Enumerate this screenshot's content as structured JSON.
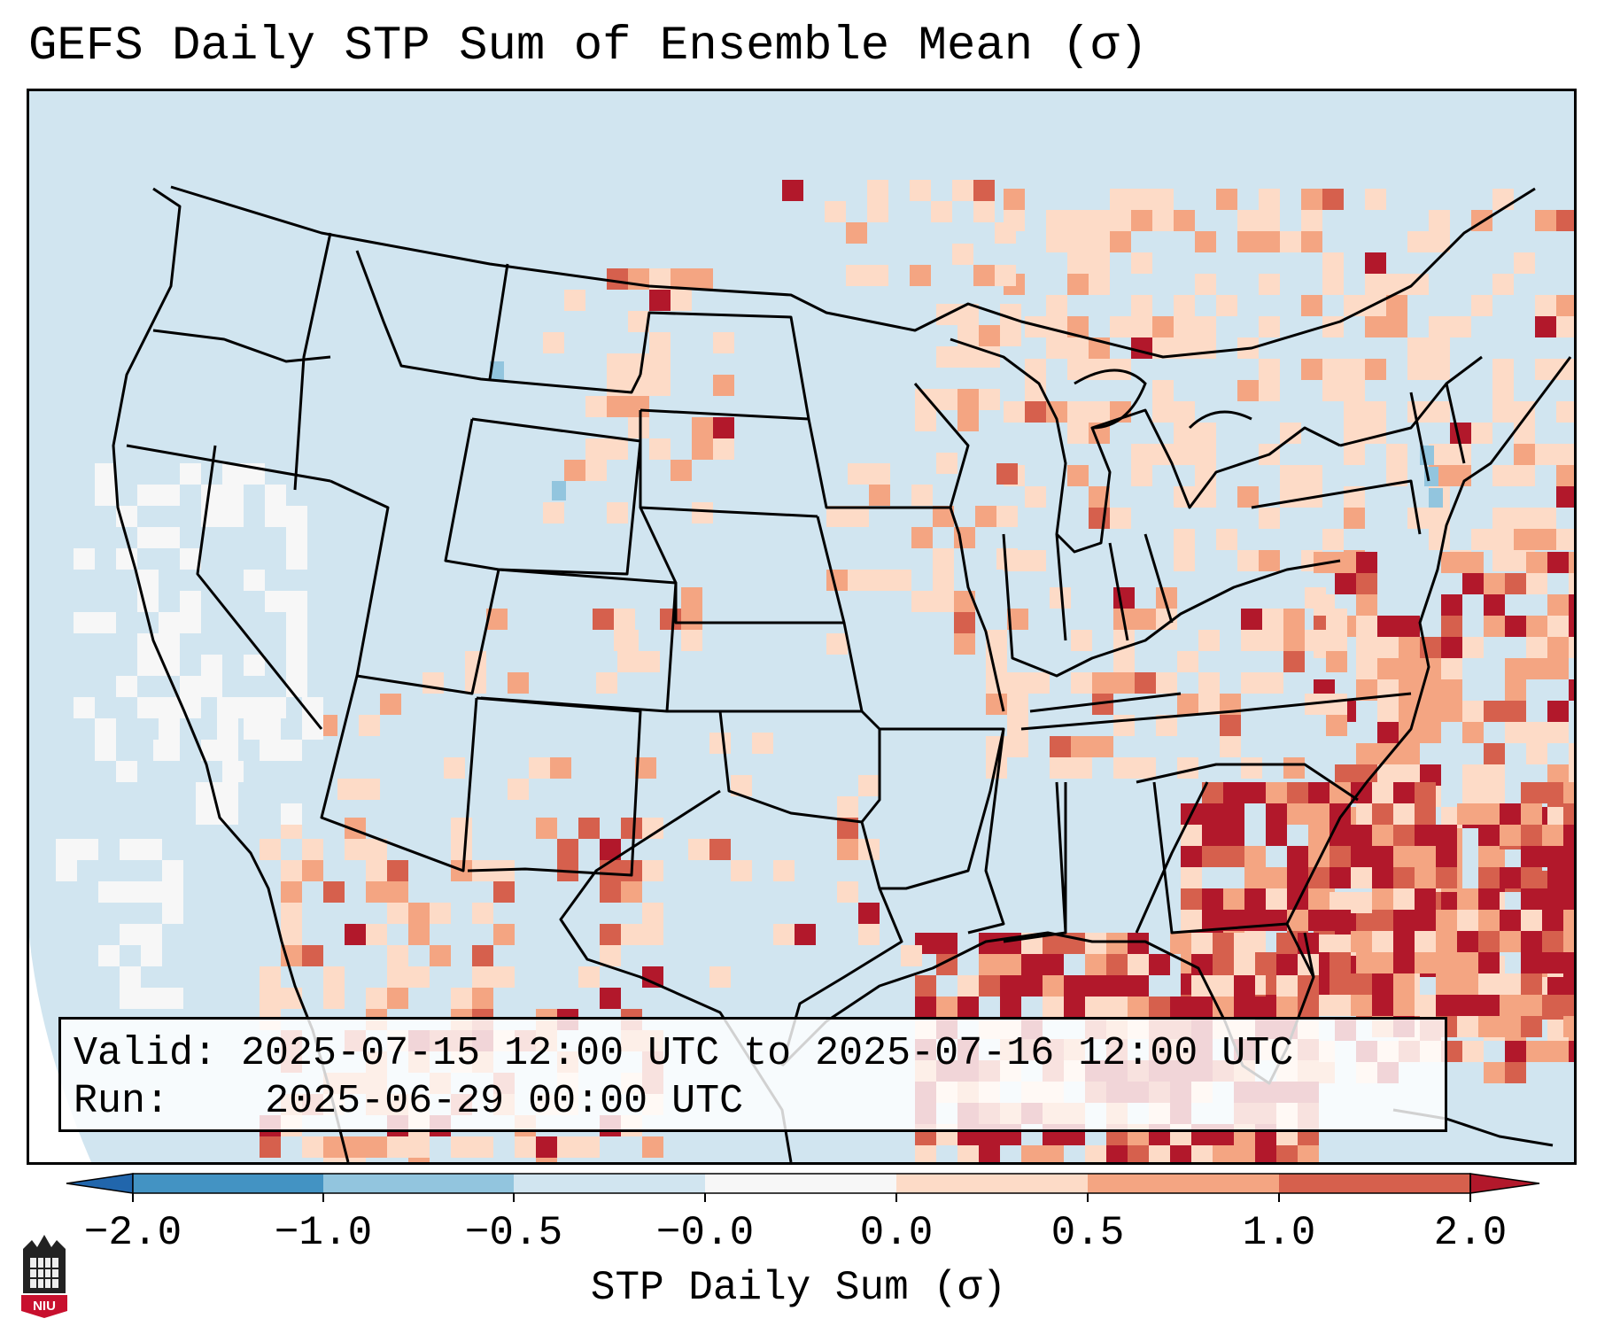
{
  "title": "GEFS Daily STP Sum of Ensemble Mean (σ)",
  "info_box": {
    "valid_label": "Valid:",
    "valid_value": "2025-07-15 12:00 UTC to 2025-07-16 12:00 UTC",
    "run_label": "Run:",
    "run_value": "2025-06-29 00:00 UTC"
  },
  "colorbar": {
    "label": "STP Daily Sum (σ)",
    "ticks": [
      "−2.0",
      "−1.0",
      "−0.5",
      "−0.0",
      "0.0",
      "0.5",
      "1.0",
      "2.0"
    ],
    "bins": [
      {
        "range": "< -2.0",
        "color": "#2166ac"
      },
      {
        "range": "-2.0 to -1.0",
        "color": "#4393c3"
      },
      {
        "range": "-1.0 to -0.5",
        "color": "#92c5de"
      },
      {
        "range": "-0.5 to -0.0",
        "color": "#d1e5f0"
      },
      {
        "range": "-0.0 to 0.0",
        "color": "#f7f7f7"
      },
      {
        "range": "0.0 to 0.5",
        "color": "#fddbc7"
      },
      {
        "range": "0.5 to 1.0",
        "color": "#f4a582"
      },
      {
        "range": "1.0 to 2.0",
        "color": "#d6604d"
      },
      {
        "range": "> 2.0",
        "color": "#b2182b"
      }
    ]
  },
  "map": {
    "region": "Continental United States",
    "background_color": "#d1e5f0",
    "outside_domain_color": "#ffffff",
    "border_color": "#000000"
  },
  "logo": {
    "text": "NIU"
  }
}
